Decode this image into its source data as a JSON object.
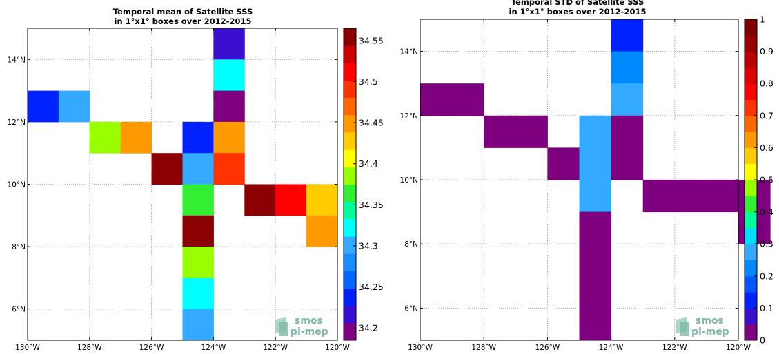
{
  "chart_data": [
    {
      "type": "heatmap",
      "title_lines": [
        "Temporal mean of Satellite SSS",
        "in 1°x1° boxes over 2012-2015"
      ],
      "xlim": [
        -130,
        -120
      ],
      "ylim": [
        5,
        15
      ],
      "x_ticks": [
        {
          "value": -130,
          "label": "130°W"
        },
        {
          "value": -128,
          "label": "128°W"
        },
        {
          "value": -126,
          "label": "126°W"
        },
        {
          "value": -124,
          "label": "124°W"
        },
        {
          "value": -122,
          "label": "122°W"
        },
        {
          "value": -120,
          "label": "120°W"
        }
      ],
      "y_ticks": [
        {
          "value": 6,
          "label": "6°N"
        },
        {
          "value": 8,
          "label": "8°N"
        },
        {
          "value": 10,
          "label": "10°N"
        },
        {
          "value": 12,
          "label": "12°N"
        },
        {
          "value": 14,
          "label": "14°N"
        }
      ],
      "grid": true,
      "colorbar": {
        "min": 34.185,
        "max": 34.565,
        "levels": 19,
        "ticks": [
          {
            "value": 34.2,
            "label": "34.2"
          },
          {
            "value": 34.25,
            "label": "34.25"
          },
          {
            "value": 34.3,
            "label": "34.3"
          },
          {
            "value": 34.35,
            "label": "34.35"
          },
          {
            "value": 34.4,
            "label": "34.4"
          },
          {
            "value": 34.45,
            "label": "34.45"
          },
          {
            "value": 34.5,
            "label": "34.5"
          },
          {
            "value": 34.55,
            "label": "34.55"
          }
        ]
      },
      "cells": [
        {
          "lon": -130,
          "lat": 12,
          "value": 34.23
        },
        {
          "lon": -129,
          "lat": 12,
          "value": 34.3
        },
        {
          "lon": -128,
          "lat": 11,
          "value": 34.39
        },
        {
          "lon": -127,
          "lat": 11,
          "value": 34.45
        },
        {
          "lon": -126,
          "lat": 10,
          "value": 34.55
        },
        {
          "lon": -125,
          "lat": 11,
          "value": 34.23
        },
        {
          "lon": -125,
          "lat": 10,
          "value": 34.3
        },
        {
          "lon": -125,
          "lat": 9,
          "value": 34.37
        },
        {
          "lon": -125,
          "lat": 8,
          "value": 34.55
        },
        {
          "lon": -125,
          "lat": 7,
          "value": 34.39
        },
        {
          "lon": -125,
          "lat": 6,
          "value": 34.33
        },
        {
          "lon": -125,
          "lat": 5,
          "value": 34.31
        },
        {
          "lon": -124,
          "lat": 14,
          "value": 34.22
        },
        {
          "lon": -124,
          "lat": 13,
          "value": 34.33
        },
        {
          "lon": -124,
          "lat": 12,
          "value": 34.2
        },
        {
          "lon": -124,
          "lat": 11,
          "value": 34.45
        },
        {
          "lon": -124,
          "lat": 10,
          "value": 34.49
        },
        {
          "lon": -123,
          "lat": 9,
          "value": 34.55
        },
        {
          "lon": -122,
          "lat": 9,
          "value": 34.51
        },
        {
          "lon": -121,
          "lat": 9,
          "value": 34.43
        },
        {
          "lon": -121,
          "lat": 8,
          "value": 34.45
        }
      ]
    },
    {
      "type": "heatmap",
      "title_lines": [
        "Temporal STD of Satellite SSS",
        "in 1°x1° boxes over 2012-2015"
      ],
      "xlim": [
        -130,
        -120
      ],
      "ylim": [
        5,
        15
      ],
      "x_ticks": [
        {
          "value": -130,
          "label": "130°W"
        },
        {
          "value": -128,
          "label": "128°W"
        },
        {
          "value": -126,
          "label": "126°W"
        },
        {
          "value": -124,
          "label": "124°W"
        },
        {
          "value": -122,
          "label": "122°W"
        },
        {
          "value": -120,
          "label": "120°W"
        }
      ],
      "y_ticks": [
        {
          "value": 6,
          "label": "6°N"
        },
        {
          "value": 8,
          "label": "8°N"
        },
        {
          "value": 10,
          "label": "10°N"
        },
        {
          "value": 12,
          "label": "12°N"
        },
        {
          "value": 14,
          "label": "14°N"
        }
      ],
      "grid": true,
      "colorbar": {
        "min": 0,
        "max": 1,
        "levels": 20,
        "ticks": [
          {
            "value": 0,
            "label": "0"
          },
          {
            "value": 0.1,
            "label": "0.1"
          },
          {
            "value": 0.2,
            "label": "0.2"
          },
          {
            "value": 0.3,
            "label": "0.3"
          },
          {
            "value": 0.4,
            "label": "0.4"
          },
          {
            "value": 0.5,
            "label": "0.5"
          },
          {
            "value": 0.6,
            "label": "0.6"
          },
          {
            "value": 0.7,
            "label": "0.7"
          },
          {
            "value": 0.8,
            "label": "0.8"
          },
          {
            "value": 0.9,
            "label": "0.9"
          },
          {
            "value": 1,
            "label": "1"
          }
        ]
      },
      "cells": [
        {
          "lon": -130,
          "lat": 12,
          "value": 0.02
        },
        {
          "lon": -129,
          "lat": 12,
          "value": 0.02
        },
        {
          "lon": -128,
          "lat": 11,
          "value": 0.02
        },
        {
          "lon": -127,
          "lat": 11,
          "value": 0.02
        },
        {
          "lon": -126,
          "lat": 10,
          "value": 0.02
        },
        {
          "lon": -125,
          "lat": 11,
          "value": 0.27
        },
        {
          "lon": -125,
          "lat": 10,
          "value": 0.27
        },
        {
          "lon": -125,
          "lat": 9,
          "value": 0.27
        },
        {
          "lon": -125,
          "lat": 8,
          "value": 0.02
        },
        {
          "lon": -125,
          "lat": 7,
          "value": 0.02
        },
        {
          "lon": -125,
          "lat": 6,
          "value": 0.02
        },
        {
          "lon": -125,
          "lat": 5,
          "value": 0.02
        },
        {
          "lon": -124,
          "lat": 14,
          "value": 0.13
        },
        {
          "lon": -124,
          "lat": 13,
          "value": 0.23
        },
        {
          "lon": -124,
          "lat": 12,
          "value": 0.28
        },
        {
          "lon": -124,
          "lat": 11,
          "value": 0.02
        },
        {
          "lon": -124,
          "lat": 10,
          "value": 0.02
        },
        {
          "lon": -123,
          "lat": 9,
          "value": 0.02
        },
        {
          "lon": -122,
          "lat": 9,
          "value": 0.02
        },
        {
          "lon": -121,
          "lat": 9,
          "value": 0.02
        },
        {
          "lon": -120,
          "lat": 9,
          "value": 0.02
        },
        {
          "lon": -120,
          "lat": 8,
          "value": 0.02
        }
      ]
    }
  ],
  "colormap": [
    "#7f007f",
    "#3b0fcf",
    "#0022ff",
    "#0066ff",
    "#1a8cff",
    "#33aaff",
    "#00ffff",
    "#00ff99",
    "#33ee33",
    "#99ff00",
    "#ffff00",
    "#ffcc00",
    "#ff9900",
    "#ff6600",
    "#ff3300",
    "#ff0000",
    "#cc0000",
    "#8b0000"
  ],
  "logo": {
    "line1": "smos",
    "line2": "pi-mep"
  }
}
